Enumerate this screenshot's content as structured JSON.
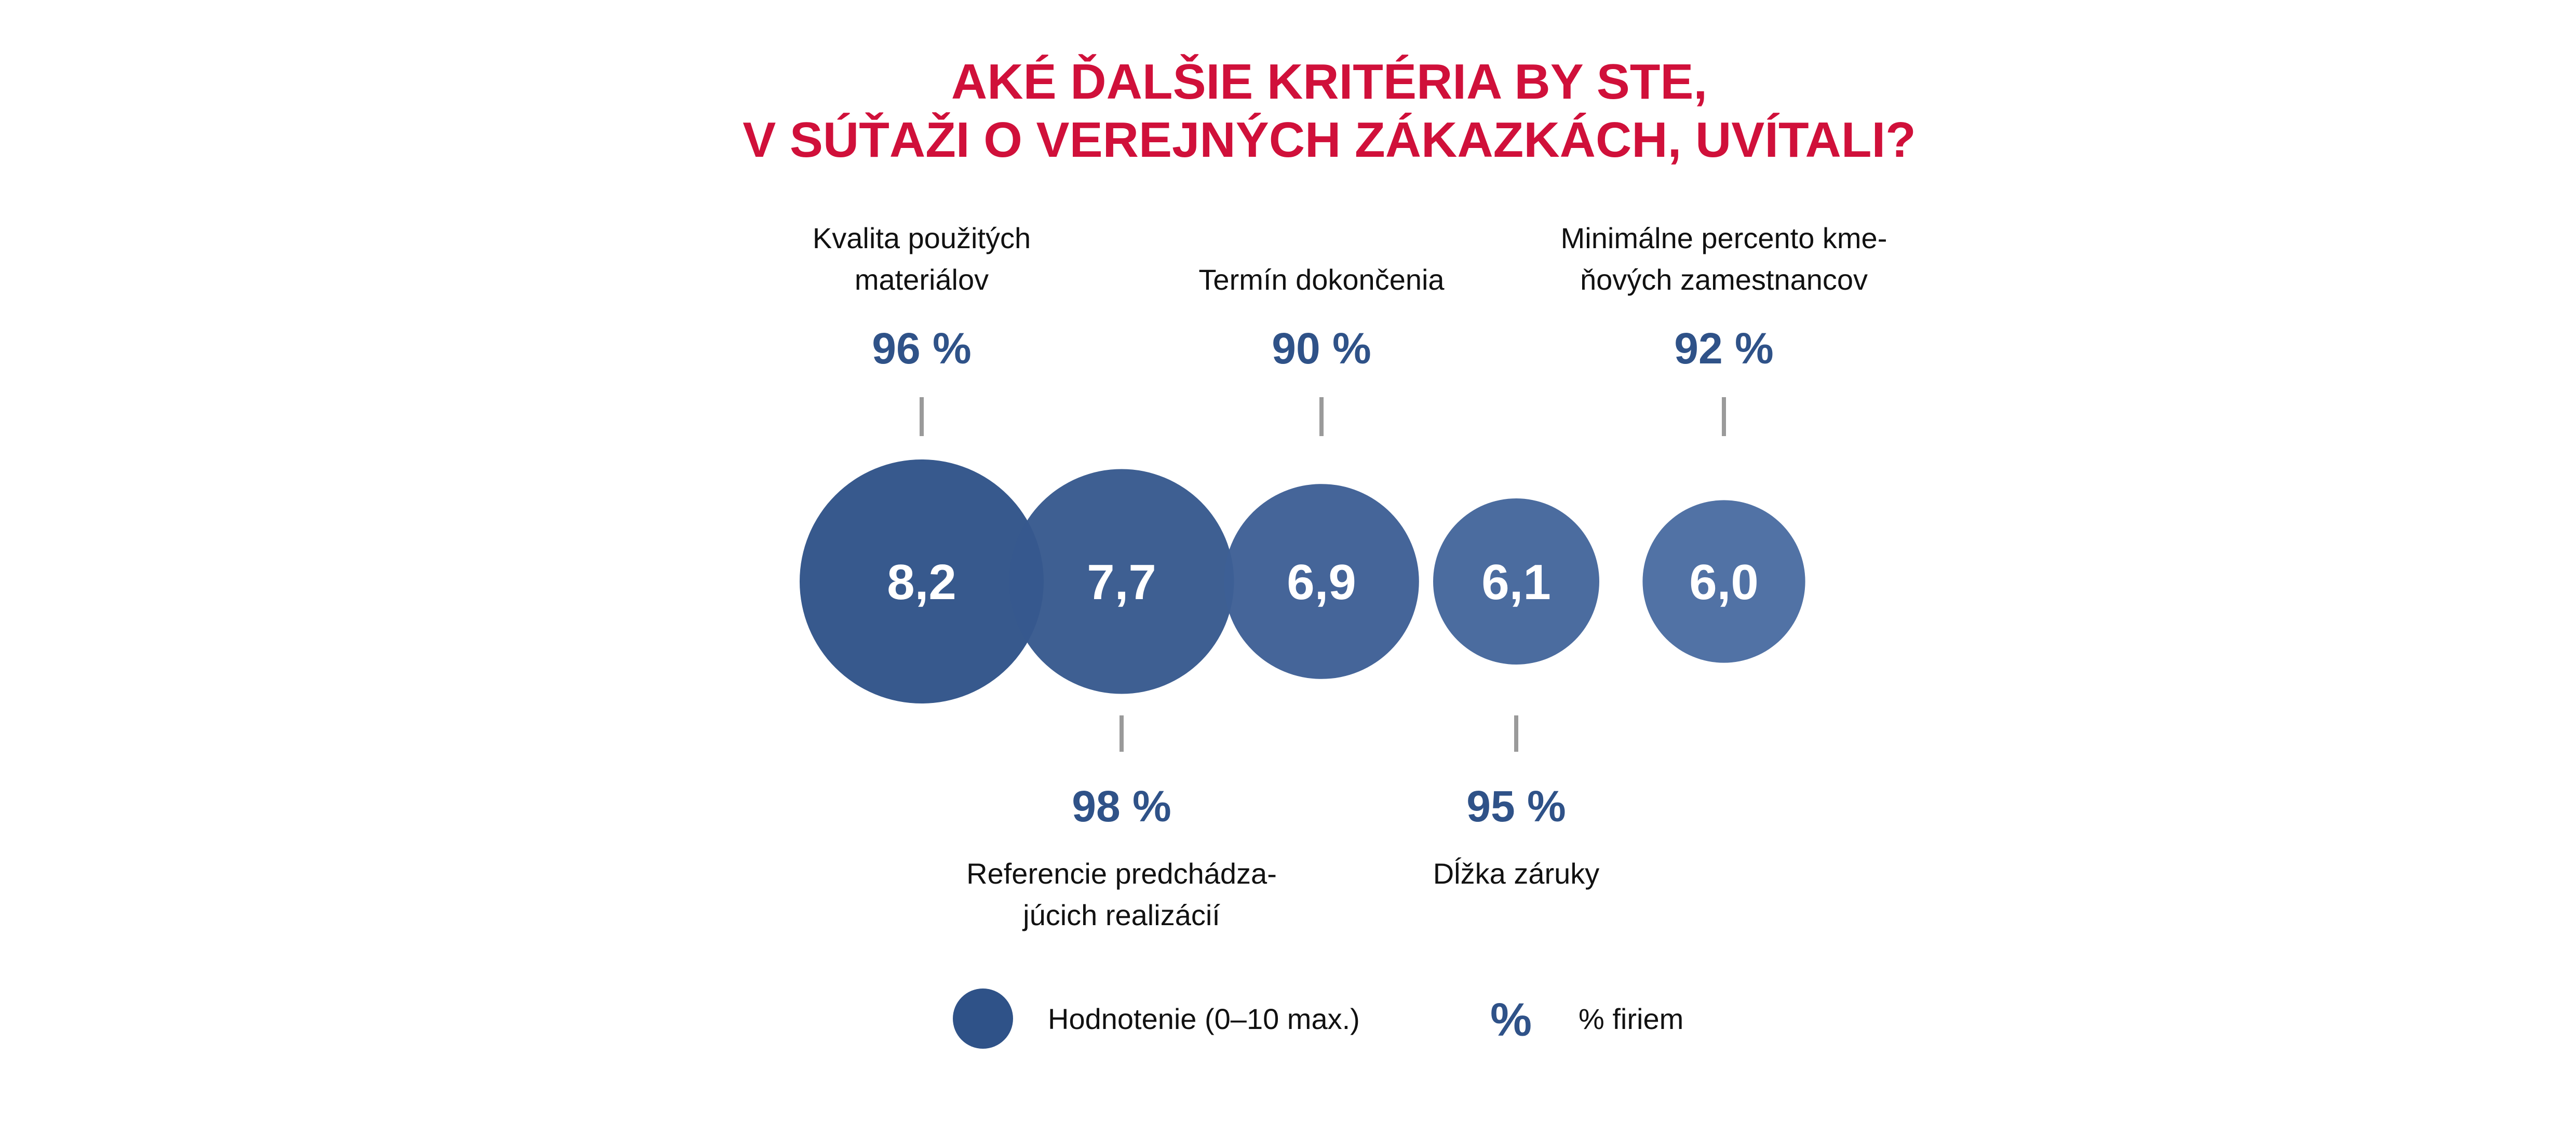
{
  "chart_data": {
    "type": "bubble",
    "title_lines": [
      "AKÉ ĎALŠIE KRITÉRIA BY STE,",
      "V SÚŤAŽI O VEREJNÝCH ZÁKAZKÁCH, UVÍTALI?"
    ],
    "items": [
      {
        "label_lines": [
          "Kvalita použitých",
          "materiálov"
        ],
        "score": 8.2,
        "score_label": "8,2",
        "percent": 96,
        "percent_label": "96 %"
      },
      {
        "label_lines": [
          "Referencie predchádza-",
          "júcich realizácií"
        ],
        "score": 7.7,
        "score_label": "7,7",
        "percent": 98,
        "percent_label": "98 %"
      },
      {
        "label_lines": [
          "Termín dokončenia"
        ],
        "score": 6.9,
        "score_label": "6,9",
        "percent": 90,
        "percent_label": "90 %"
      },
      {
        "label_lines": [
          "Dĺžka záruky"
        ],
        "score": 6.1,
        "score_label": "6,1",
        "percent": 95,
        "percent_label": "95 %"
      },
      {
        "label_lines": [
          "Minimálne percento kme-",
          "ňových zamestnancov"
        ],
        "score": 6.0,
        "score_label": "6,0",
        "percent": 92,
        "percent_label": "92 %"
      }
    ],
    "legend": {
      "circle_label": "Hodnotenie (0–10 max.)",
      "percent_symbol": "%",
      "percent_label": "% firiem"
    },
    "colors": {
      "title": "#d0103a",
      "bubbles": [
        "#2f5288",
        "#36588e",
        "#3d5f95",
        "#44669b",
        "#4a6ca1"
      ],
      "percent_text": "#2f5288",
      "tick": "#9a9a9a"
    }
  }
}
